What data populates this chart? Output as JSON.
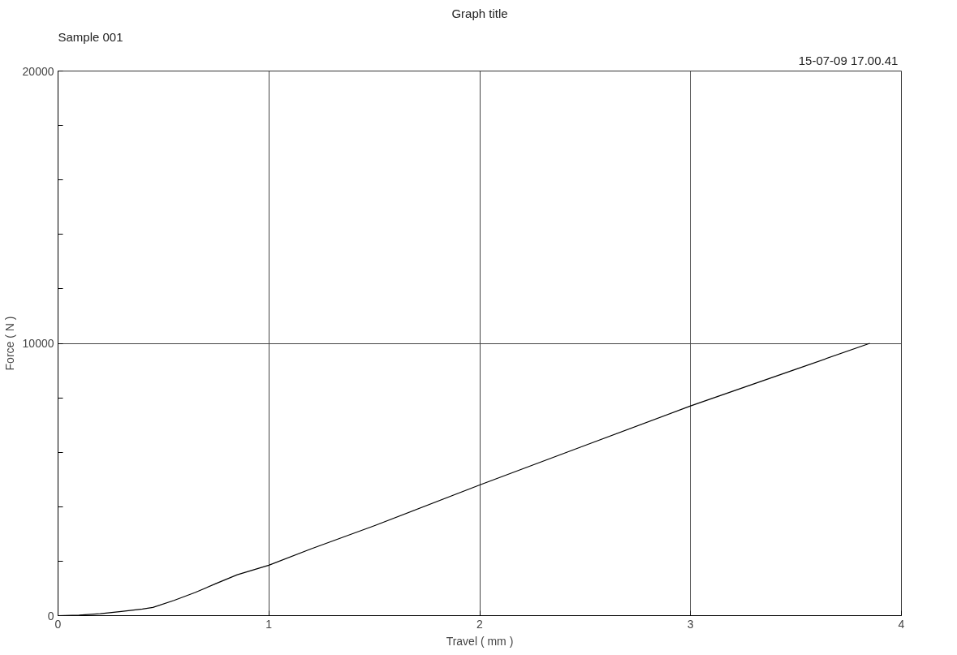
{
  "chart_data": {
    "type": "line",
    "title": "Graph title",
    "xlabel": "Travel ( mm )",
    "ylabel": "Force ( N )",
    "annotations": [
      "Sample 001",
      "15-07-09  17.00.41"
    ],
    "x": [
      0,
      0.1,
      0.2,
      0.3,
      0.4,
      0.45,
      0.55,
      0.65,
      0.75,
      0.85,
      1.0,
      1.2,
      1.5,
      2.0,
      2.5,
      3.0,
      3.5,
      3.85
    ],
    "series": [
      {
        "color": "#000000",
        "values": [
          0,
          20,
          70,
          150,
          240,
          300,
          560,
          850,
          1180,
          1500,
          1850,
          2450,
          3300,
          4800,
          6250,
          7700,
          9050,
          10000
        ]
      }
    ],
    "xlim": [
      0,
      4
    ],
    "xticks": [
      0,
      1,
      2,
      3,
      4
    ],
    "ylim": [
      0,
      20000
    ],
    "yticks": [
      0,
      {
        "value": 2000,
        "label": null
      },
      {
        "value": 4000,
        "label": null
      },
      {
        "value": 6000,
        "label": null
      },
      {
        "value": 8000,
        "label": null
      },
      10000,
      {
        "value": 12000,
        "label": null
      },
      {
        "value": 14000,
        "label": null
      },
      {
        "value": 16000,
        "label": null
      },
      {
        "value": 18000,
        "label": null
      },
      20000
    ],
    "grid": true,
    "marker": "none",
    "line_style": "solid"
  }
}
